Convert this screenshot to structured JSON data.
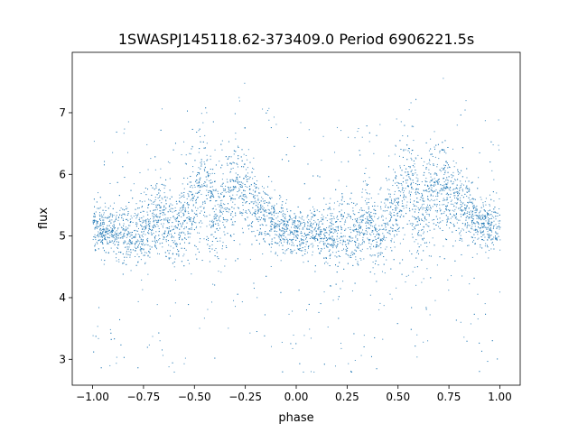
{
  "chart_data": {
    "type": "scatter",
    "title": "1SWASPJ145118.62-373409.0 Period 6906221.5s",
    "xlabel": "phase",
    "ylabel": "flux",
    "xlim": [
      -1.1,
      1.1
    ],
    "ylim": [
      2.58,
      7.98
    ],
    "x_ticks": [
      -1.0,
      -0.75,
      -0.5,
      -0.25,
      0.0,
      0.25,
      0.5,
      0.75,
      1.0
    ],
    "x_tick_labels": [
      "−1.00",
      "−0.75",
      "−0.50",
      "−0.25",
      "0.00",
      "0.25",
      "0.50",
      "0.75",
      "1.00"
    ],
    "y_ticks": [
      3,
      4,
      5,
      6,
      7
    ],
    "y_tick_labels": [
      "3",
      "4",
      "5",
      "6",
      "7"
    ],
    "grid": false,
    "legend": "none",
    "marker_color": "#1f77b4",
    "series": [
      {
        "phase_profile": {
          "phase": [
            -1.0,
            -0.9,
            -0.8,
            -0.72,
            -0.66,
            -0.6,
            -0.55,
            -0.5,
            -0.45,
            -0.4,
            -0.33,
            -0.27,
            -0.2,
            -0.1,
            0.0,
            0.1,
            0.2,
            0.3,
            0.34,
            0.4,
            0.45,
            0.5,
            0.55,
            0.6,
            0.67,
            0.73,
            0.8,
            0.9,
            1.0
          ],
          "median_flux": [
            5.1,
            5.1,
            5.05,
            5.15,
            5.4,
            5.0,
            5.3,
            5.5,
            5.9,
            5.3,
            5.7,
            5.8,
            5.5,
            5.2,
            5.05,
            5.05,
            5.0,
            5.1,
            5.4,
            5.0,
            5.3,
            5.5,
            5.9,
            5.3,
            5.7,
            5.8,
            5.5,
            5.2,
            5.1
          ],
          "scatter": [
            0.18,
            0.2,
            0.3,
            0.25,
            0.3,
            0.3,
            0.35,
            0.4,
            0.45,
            0.4,
            0.4,
            0.35,
            0.3,
            0.2,
            0.18,
            0.2,
            0.3,
            0.25,
            0.3,
            0.3,
            0.35,
            0.4,
            0.45,
            0.4,
            0.4,
            0.35,
            0.3,
            0.2,
            0.18
          ]
        },
        "flux_range": [
          2.8,
          7.6
        ]
      }
    ]
  }
}
